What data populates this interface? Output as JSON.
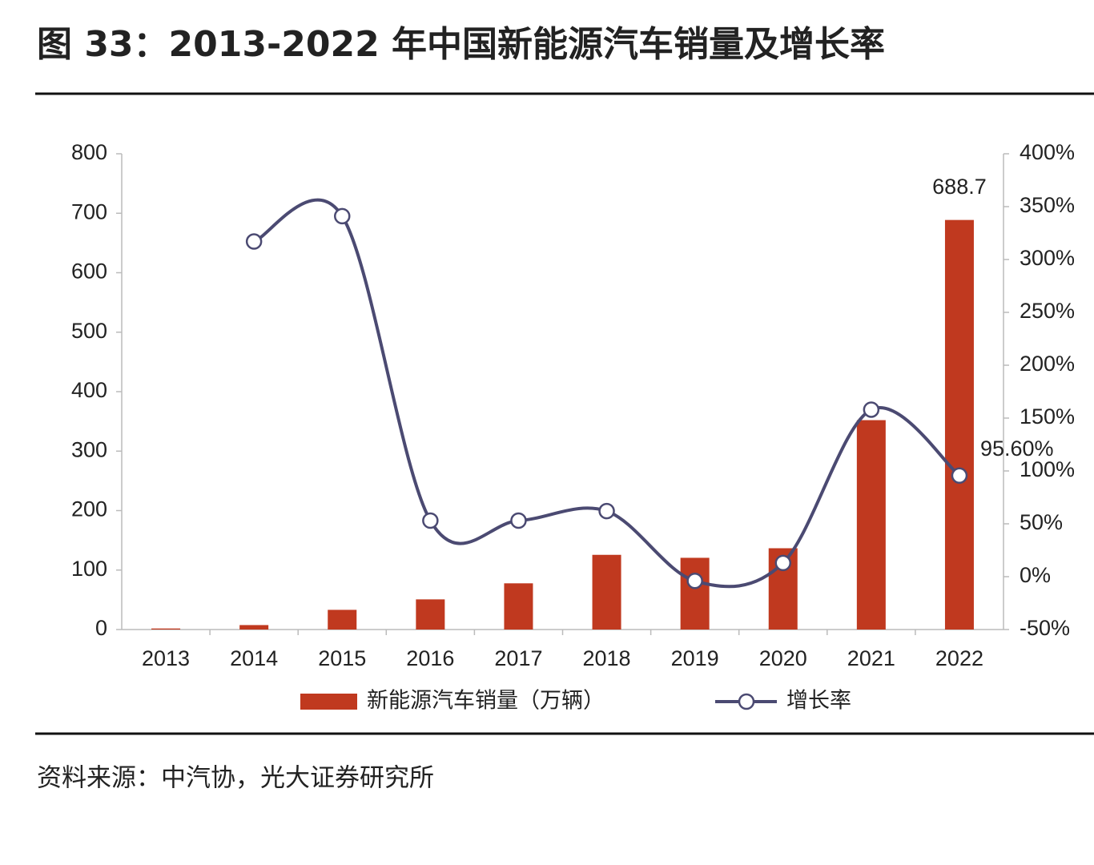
{
  "chart_data": {
    "type": "bar-line",
    "title": "图 33：2013-2022 年中国新能源汽车销量及增长率",
    "source": "资料来源：中汽协，光大证券研究所",
    "categories": [
      "2013",
      "2014",
      "2015",
      "2016",
      "2017",
      "2018",
      "2019",
      "2020",
      "2021",
      "2022"
    ],
    "series": [
      {
        "name": "新能源汽车销量（万辆）",
        "type": "bar",
        "color": "#c0391f",
        "values": [
          1.76,
          7.5,
          33.1,
          50.7,
          77.7,
          125.6,
          120.6,
          136.7,
          352.1,
          688.7
        ],
        "value_labels": [
          null,
          null,
          null,
          null,
          null,
          null,
          null,
          null,
          null,
          "688.7"
        ]
      },
      {
        "name": "增长率",
        "type": "line",
        "axis": "y2",
        "color": "#4b4a72",
        "values": [
          null,
          317,
          341,
          53,
          53,
          62,
          -4,
          13,
          158,
          95.6
        ],
        "value_labels": [
          null,
          null,
          null,
          null,
          null,
          null,
          null,
          null,
          null,
          "95.60%"
        ]
      }
    ],
    "ylim": [
      0,
      800
    ],
    "yticks": [
      0,
      100,
      200,
      300,
      400,
      500,
      600,
      700,
      800
    ],
    "y2lim": [
      -50,
      400
    ],
    "y2ticks": [
      {
        "value": -50,
        "label": "-50%"
      },
      {
        "value": 0,
        "label": "0%"
      },
      {
        "value": 50,
        "label": "50%"
      },
      {
        "value": 100,
        "label": "100%"
      },
      {
        "value": 150,
        "label": "150%"
      },
      {
        "value": 200,
        "label": "200%"
      },
      {
        "value": 250,
        "label": "250%"
      },
      {
        "value": 300,
        "label": "300%"
      },
      {
        "value": 350,
        "label": "350%"
      },
      {
        "value": 400,
        "label": "400%"
      }
    ],
    "legend": "bottom"
  }
}
